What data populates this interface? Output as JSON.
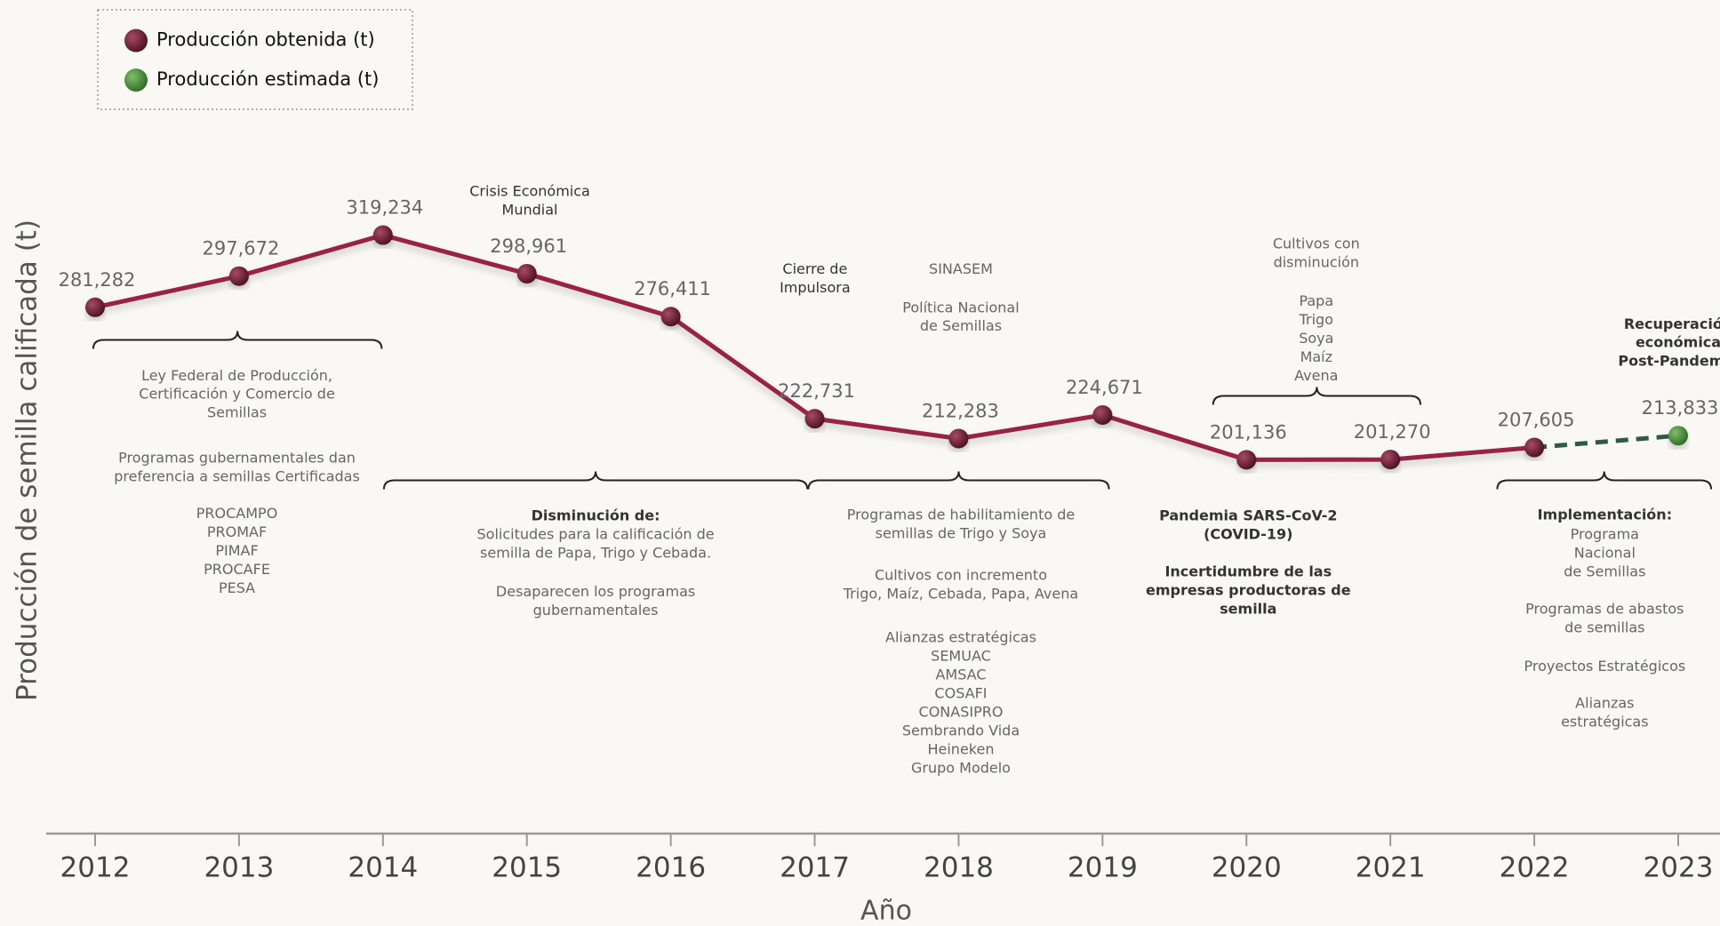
{
  "chart_data": {
    "type": "line",
    "y_label": "Producción de semilla calificada (t)",
    "x_label": "Año",
    "x": [
      2012,
      2013,
      2014,
      2015,
      2016,
      2017,
      2018,
      2019,
      2020,
      2021,
      2022,
      2023
    ],
    "xlim": [
      2012,
      2023
    ],
    "ylim": [
      0,
      440000
    ],
    "legend": "top-left",
    "series": [
      {
        "name": "Producción obtenida (t)",
        "color": "#9b2247",
        "marker_color": "#6b1e35",
        "values": [
          281282,
          297672,
          319234,
          298961,
          276411,
          222731,
          212283,
          224671,
          201136,
          201270,
          207605,
          null
        ],
        "value_labels": [
          "281,282",
          "297,672",
          "319,234",
          "298,961",
          "276,411",
          "222,731",
          "212,283",
          "224,671",
          "201,136",
          "201,270",
          "207,605",
          null
        ]
      },
      {
        "name": "Producción estimada (t)",
        "color": "#2d5a4a",
        "marker_color": "#4a8a3a",
        "dashed": true,
        "values": [
          null,
          null,
          null,
          null,
          null,
          null,
          null,
          null,
          null,
          null,
          null,
          213833
        ],
        "value_labels": [
          null,
          null,
          null,
          null,
          null,
          null,
          null,
          null,
          null,
          null,
          null,
          "213,833"
        ]
      }
    ],
    "annotations": [
      {
        "lines": [
          "Crisis Económica",
          "Mundial"
        ]
      },
      {
        "lines": [
          "Cierre de",
          "Impulsora"
        ]
      },
      {
        "lines": [
          "SINASEM"
        ]
      },
      {
        "lines": [
          "Política Nacional",
          "de Semillas"
        ]
      },
      {
        "lines": [
          "Cultivos con",
          "disminución"
        ]
      },
      {
        "lines": [
          "Papa",
          "Trigo",
          "Soya",
          "Maíz",
          "Avena"
        ]
      },
      {
        "lines": [
          "Recuperación",
          "económica",
          "Post-Pandemia"
        ]
      },
      {
        "lines": [
          "Ley Federal de Producción,",
          "Certificación y Comercio de",
          "Semillas"
        ]
      },
      {
        "lines": [
          "Programas gubernamentales dan",
          "preferencia a semillas Certificadas"
        ]
      },
      {
        "lines": [
          "PROCAMPO",
          "PROMAF",
          "PIMAF",
          "PROCAFE",
          "PESA"
        ]
      },
      {
        "lines": [
          "Disminución de:"
        ]
      },
      {
        "lines": [
          "Solicitudes para la calificación de",
          "semilla de Papa, Trigo y Cebada."
        ]
      },
      {
        "lines": [
          "Desaparecen los programas",
          "gubernamentales"
        ]
      },
      {
        "lines": [
          "Programas de habilitamiento de",
          "semillas de Trigo y Soya"
        ]
      },
      {
        "lines": [
          "Cultivos con incremento",
          "Trigo, Maíz, Cebada, Papa, Avena"
        ]
      },
      {
        "lines": [
          "Alianzas estratégicas",
          "SEMUAC",
          "AMSAC",
          "COSAFI",
          "CONASIPRO",
          "Sembrando Vida",
          "Heineken",
          "Grupo Modelo"
        ]
      },
      {
        "lines": [
          "Pandemia SARS-CoV-2",
          "(COVID-19)"
        ]
      },
      {
        "lines": [
          "Incertidumbre de las",
          "empresas productoras de",
          "semilla"
        ]
      },
      {
        "lines": [
          "Implementación:"
        ]
      },
      {
        "lines": [
          "Programa",
          "Nacional",
          "de Semillas"
        ]
      },
      {
        "lines": [
          "Programas de abastos",
          "de semillas"
        ]
      },
      {
        "lines": [
          "Proyectos Estratégicos"
        ]
      },
      {
        "lines": [
          "Alianzas",
          "estratégicas"
        ]
      }
    ]
  }
}
